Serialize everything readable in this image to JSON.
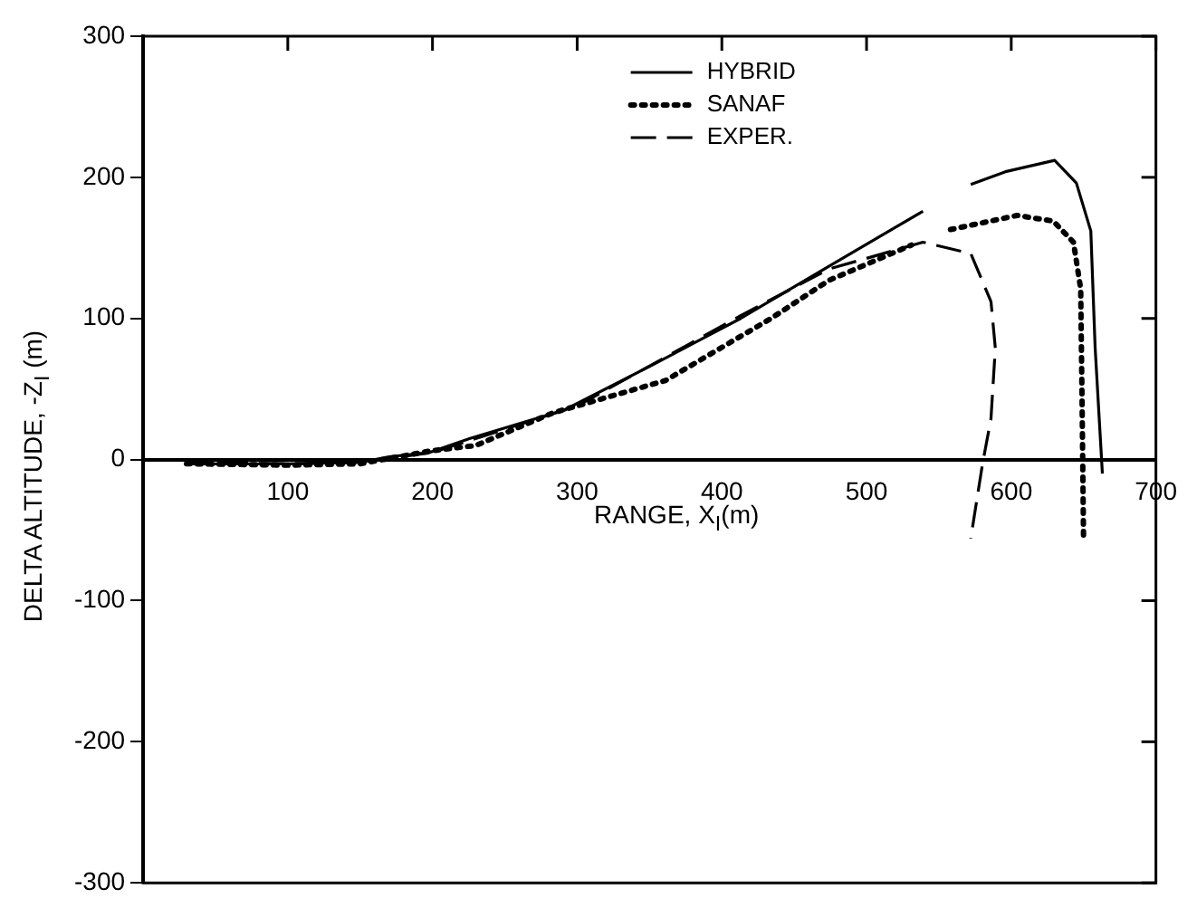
{
  "chart_data": {
    "type": "line",
    "xlabel": "RANGE, X$_{I}$(m)",
    "ylabel": "DELTA ALTITUDE, -Z$_{I}$ (m)",
    "xlim": [
      0,
      700
    ],
    "ylim": [
      -300,
      300
    ],
    "xticks": [
      {
        "value": 0,
        "label": null
      },
      100,
      200,
      300,
      400,
      500,
      600,
      700
    ],
    "yticks": [
      -300,
      -200,
      -100,
      0,
      100,
      200,
      300
    ],
    "grid": false,
    "legend": "top right",
    "marker": "none",
    "series": [
      {
        "name": "HYBRID",
        "color": "#000000",
        "line_style": "solid",
        "x": [
          30,
          100,
          150,
          170,
          198,
          226,
          291,
          352,
          413,
          474,
          539,
          560,
          572,
          596,
          630,
          645,
          655,
          658,
          663
        ],
        "values": [
          -3,
          -3,
          -2,
          2,
          5,
          15,
          35,
          67,
          100,
          137,
          176,
          null,
          195,
          204,
          212,
          196,
          162,
          79,
          -10
        ]
      },
      {
        "name": "SANAF",
        "color": "#000000",
        "line_style": "dotted",
        "x": [
          30,
          100,
          150,
          198,
          230,
          283,
          361,
          434,
          474,
          531,
          545,
          558,
          604,
          629,
          643,
          648,
          649,
          650
        ],
        "values": [
          -3,
          -4,
          -3,
          6,
          10,
          33,
          56,
          100,
          127,
          152,
          null,
          163,
          173,
          169,
          154,
          121,
          37,
          -58
        ]
      },
      {
        "name": "EXPER.",
        "color": "#000000",
        "line_style": "dashed",
        "x": [
          30,
          100,
          150,
          200,
          300,
          413,
          474,
          539,
          572,
          586,
          589,
          586,
          580,
          572
        ],
        "values": [
          -2,
          -3,
          -2,
          5,
          38,
          102,
          135,
          154,
          146,
          112,
          79,
          29,
          -4,
          -56
        ]
      }
    ]
  }
}
